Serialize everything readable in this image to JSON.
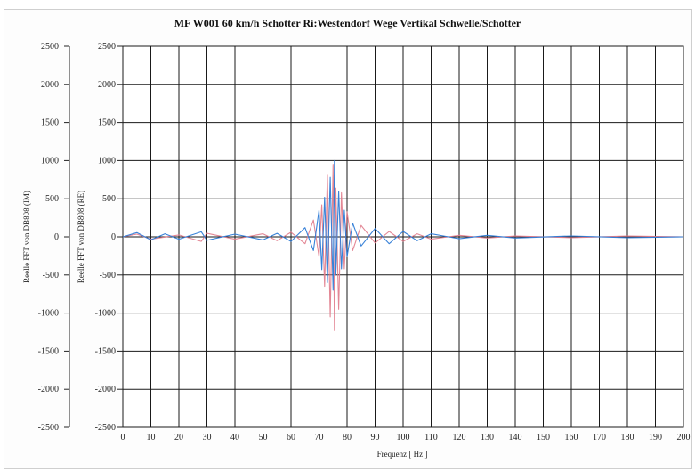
{
  "chart_data": {
    "type": "line",
    "title": "MF W001 60 km/h Schotter Ri:Westendorf Wege Vertikal Schwelle/Schotter",
    "xlabel": "Frequenz [ Hz ]",
    "ylabel_left": "Reelle FFT von DB808 (IM)",
    "ylabel_inner": "Reelle FFT von DB808 (RE)",
    "xlim": [
      0,
      200
    ],
    "ylim": [
      -2500,
      2500
    ],
    "x_ticks": [
      "0",
      "10",
      "20",
      "30",
      "40",
      "50",
      "60",
      "70",
      "80",
      "90",
      "100",
      "110",
      "120",
      "130",
      "140",
      "150",
      "160",
      "170",
      "180",
      "190",
      "200"
    ],
    "y_ticks": [
      "2500",
      "2000",
      "1500",
      "1000",
      "500",
      "0",
      "-500",
      "-1000",
      "-1500",
      "-2000",
      "-2500"
    ],
    "grid": true,
    "series": [
      {
        "color": "#e07a8a",
        "points": [
          [
            0,
            0
          ],
          [
            5,
            35
          ],
          [
            10,
            -30
          ],
          [
            20,
            25
          ],
          [
            28,
            -60
          ],
          [
            30,
            45
          ],
          [
            40,
            -30
          ],
          [
            50,
            40
          ],
          [
            55,
            -50
          ],
          [
            60,
            60
          ],
          [
            65,
            -90
          ],
          [
            68,
            220
          ],
          [
            70,
            -260
          ],
          [
            71,
            420
          ],
          [
            72,
            -650
          ],
          [
            73,
            820
          ],
          [
            74,
            -1050
          ],
          [
            75,
            950
          ],
          [
            75.5,
            -1230
          ],
          [
            76,
            640
          ],
          [
            77,
            -950
          ],
          [
            78,
            580
          ],
          [
            79,
            -420
          ],
          [
            80,
            330
          ],
          [
            82,
            -180
          ],
          [
            85,
            150
          ],
          [
            90,
            -80
          ],
          [
            95,
            70
          ],
          [
            100,
            -60
          ],
          [
            105,
            40
          ],
          [
            110,
            -30
          ],
          [
            120,
            20
          ],
          [
            130,
            -15
          ],
          [
            140,
            10
          ],
          [
            160,
            -10
          ],
          [
            180,
            10
          ],
          [
            200,
            0
          ]
        ]
      },
      {
        "color": "#2e7bd6",
        "points": [
          [
            0,
            0
          ],
          [
            5,
            55
          ],
          [
            10,
            -40
          ],
          [
            15,
            40
          ],
          [
            20,
            -30
          ],
          [
            28,
            65
          ],
          [
            30,
            -45
          ],
          [
            40,
            35
          ],
          [
            50,
            -40
          ],
          [
            55,
            45
          ],
          [
            60,
            -60
          ],
          [
            65,
            120
          ],
          [
            68,
            -180
          ],
          [
            70,
            350
          ],
          [
            71,
            -430
          ],
          [
            72,
            520
          ],
          [
            73,
            -600
          ],
          [
            74,
            780
          ],
          [
            75,
            -700
          ],
          [
            75.5,
            1000
          ],
          [
            76,
            -500
          ],
          [
            77,
            600
          ],
          [
            78,
            -420
          ],
          [
            79,
            350
          ],
          [
            80,
            -260
          ],
          [
            82,
            180
          ],
          [
            85,
            -120
          ],
          [
            90,
            110
          ],
          [
            95,
            -90
          ],
          [
            100,
            70
          ],
          [
            105,
            -50
          ],
          [
            110,
            40
          ],
          [
            120,
            -25
          ],
          [
            130,
            20
          ],
          [
            140,
            -15
          ],
          [
            160,
            12
          ],
          [
            180,
            -10
          ],
          [
            200,
            0
          ]
        ]
      }
    ]
  }
}
